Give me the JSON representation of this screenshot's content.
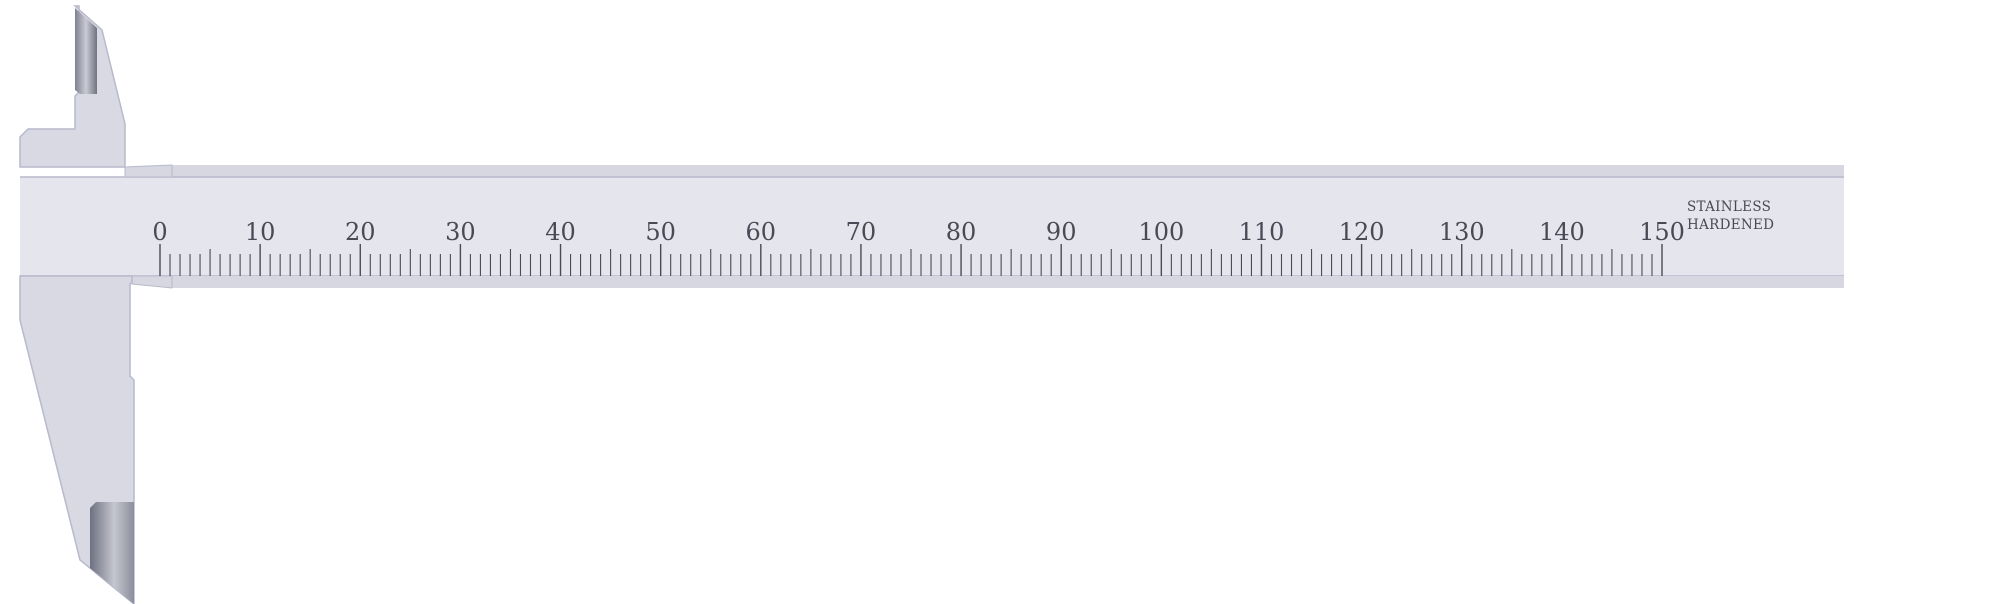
{
  "instrument": "vernier caliper main beam",
  "scale": {
    "unit": "mm",
    "start": 0,
    "end": 150,
    "minor_step": 1,
    "major_step": 10,
    "labels": [
      "0",
      "10",
      "20",
      "30",
      "40",
      "50",
      "60",
      "70",
      "80",
      "90",
      "100",
      "110",
      "120",
      "130",
      "140",
      "150"
    ]
  },
  "marking": {
    "line1": "STAINLESS",
    "line2": "HARDENED"
  },
  "colors": {
    "beam_face": "#e4e5ed",
    "beam_edge": "#d6d7e1",
    "jaw_body": "#d9d9e3",
    "outline": "#b7b9cc",
    "tick": "#4a4a57",
    "jaw_tip_dark": "#8a8d99"
  }
}
